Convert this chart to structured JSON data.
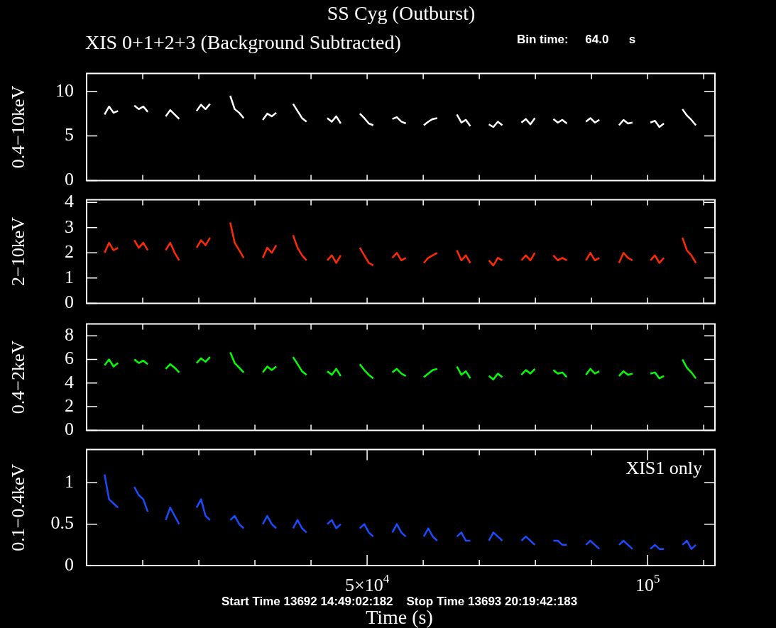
{
  "chart_data": [
    {
      "type": "line",
      "title": "SS Cyg (Outburst)",
      "subtitle": "XIS 0+1+2+3 (Background Subtracted)",
      "ylabel": "0.4−10keV",
      "annotations": [
        "Bin time:     64.0      s"
      ],
      "color": "#ffffff",
      "marker": "none",
      "grid": false,
      "tick_labels": "y",
      "xlim": [
        0,
        112000
      ],
      "ylim": [
        0,
        12
      ],
      "yticks": [
        0,
        5,
        10
      ],
      "xticks": [
        {
          "value": 10000,
          "label": null
        },
        {
          "value": 20000,
          "label": null
        },
        {
          "value": 30000,
          "label": null
        },
        {
          "value": 40000,
          "label": null
        },
        {
          "value": 50000,
          "label": null
        },
        {
          "value": 60000,
          "label": null
        },
        {
          "value": 70000,
          "label": null
        },
        {
          "value": 80000,
          "label": null
        },
        {
          "value": 90000,
          "label": null
        },
        {
          "value": 100000,
          "label": null
        },
        {
          "value": 110000,
          "label": null
        }
      ],
      "x": [
        3200,
        4000,
        4800,
        5600,
        6400,
        8500,
        9300,
        10100,
        10900,
        11700,
        14100,
        14900,
        15700,
        16500,
        17300,
        19600,
        20400,
        21200,
        22000,
        22800,
        25600,
        26400,
        27200,
        28000,
        28800,
        31400,
        32200,
        33000,
        33800,
        34600,
        36800,
        37600,
        38400,
        39200,
        40000,
        42900,
        43700,
        44500,
        45300,
        46100,
        48700,
        49500,
        50300,
        51100,
        51900,
        54500,
        55300,
        56100,
        56900,
        57700,
        60100,
        60900,
        61700,
        62500,
        63300,
        66000,
        66800,
        67600,
        68400,
        69200,
        71700,
        72500,
        73300,
        74100,
        74900,
        77500,
        78300,
        79100,
        79900,
        80700,
        83200,
        84000,
        84800,
        85600,
        86400,
        89000,
        89800,
        90600,
        91400,
        92200,
        94900,
        95700,
        96500,
        97300,
        98100,
        100500,
        101300,
        102100,
        102900,
        103700,
        106200,
        107000,
        107800,
        108600
      ],
      "values": [
        7.4,
        8.3,
        7.6,
        7.8,
        null,
        8.4,
        8.0,
        8.3,
        7.7,
        null,
        7.2,
        7.9,
        7.4,
        6.9,
        null,
        7.8,
        8.5,
        8.0,
        8.6,
        null,
        9.5,
        8.0,
        7.6,
        7.0,
        null,
        6.8,
        7.5,
        7.2,
        7.6,
        null,
        8.6,
        7.8,
        7.0,
        6.6,
        null,
        7.0,
        6.6,
        7.2,
        6.4,
        null,
        7.5,
        7.0,
        6.4,
        6.2,
        null,
        6.9,
        7.1,
        6.6,
        6.4,
        null,
        6.2,
        6.6,
        6.9,
        7.0,
        null,
        7.4,
        6.5,
        6.8,
        6.1,
        null,
        6.3,
        6.0,
        6.6,
        6.2,
        null,
        6.5,
        6.9,
        6.3,
        7.0,
        null,
        6.9,
        6.5,
        6.8,
        6.4,
        null,
        6.6,
        7.0,
        6.5,
        6.8,
        null,
        6.2,
        6.8,
        6.4,
        6.5,
        null,
        6.5,
        6.7,
        6.0,
        6.4,
        null,
        8.0,
        7.3,
        6.8,
        6.2
      ]
    },
    {
      "type": "line",
      "ylabel": "2−10keV",
      "color": "#ff2a00",
      "marker": "none",
      "grid": false,
      "tick_labels": "y",
      "xlim": [
        0,
        112000
      ],
      "ylim": [
        0,
        4.1
      ],
      "yticks": [
        0,
        1,
        2,
        3,
        4
      ],
      "xticks": [
        {
          "value": 10000,
          "label": null
        },
        {
          "value": 20000,
          "label": null
        },
        {
          "value": 30000,
          "label": null
        },
        {
          "value": 40000,
          "label": null
        },
        {
          "value": 50000,
          "label": null
        },
        {
          "value": 60000,
          "label": null
        },
        {
          "value": 70000,
          "label": null
        },
        {
          "value": 80000,
          "label": null
        },
        {
          "value": 90000,
          "label": null
        },
        {
          "value": 100000,
          "label": null
        },
        {
          "value": 110000,
          "label": null
        }
      ],
      "x": [
        3200,
        4000,
        4800,
        5600,
        6400,
        8500,
        9300,
        10100,
        10900,
        11700,
        14100,
        14900,
        15700,
        16500,
        17300,
        19600,
        20400,
        21200,
        22000,
        22800,
        25600,
        26400,
        27200,
        28000,
        28800,
        31400,
        32200,
        33000,
        33800,
        34600,
        36800,
        37600,
        38400,
        39200,
        40000,
        42900,
        43700,
        44500,
        45300,
        46100,
        48700,
        49500,
        50300,
        51100,
        51900,
        54500,
        55300,
        56100,
        56900,
        57700,
        60100,
        60900,
        61700,
        62500,
        63300,
        66000,
        66800,
        67600,
        68400,
        69200,
        71700,
        72500,
        73300,
        74100,
        74900,
        77500,
        78300,
        79100,
        79900,
        80700,
        83200,
        84000,
        84800,
        85600,
        86400,
        89000,
        89800,
        90600,
        91400,
        92200,
        94900,
        95700,
        96500,
        97300,
        98100,
        100500,
        101300,
        102100,
        102900,
        103700,
        106200,
        107000,
        107800,
        108600
      ],
      "values": [
        2.0,
        2.4,
        2.1,
        2.2,
        null,
        2.5,
        2.2,
        2.4,
        2.1,
        null,
        2.1,
        2.4,
        2.0,
        1.7,
        null,
        2.2,
        2.5,
        2.3,
        2.6,
        null,
        3.2,
        2.4,
        2.1,
        1.8,
        null,
        1.8,
        2.2,
        2.0,
        2.3,
        null,
        2.7,
        2.2,
        1.9,
        1.7,
        null,
        1.7,
        1.9,
        1.6,
        1.9,
        null,
        2.2,
        1.9,
        1.6,
        1.5,
        null,
        1.8,
        2.0,
        1.7,
        1.8,
        null,
        1.6,
        1.8,
        1.9,
        2.0,
        null,
        2.1,
        1.7,
        1.9,
        1.6,
        null,
        1.7,
        1.5,
        1.8,
        1.7,
        null,
        1.7,
        1.9,
        1.7,
        2.0,
        null,
        1.9,
        1.7,
        1.8,
        1.7,
        null,
        1.7,
        2.0,
        1.7,
        1.8,
        null,
        1.6,
        2.0,
        1.8,
        1.7,
        null,
        1.7,
        1.9,
        1.6,
        1.8,
        null,
        2.6,
        2.1,
        1.9,
        1.6
      ]
    },
    {
      "type": "line",
      "ylabel": "0.4−2keV",
      "color": "#00ff00",
      "marker": "none",
      "grid": false,
      "tick_labels": "y",
      "xlim": [
        0,
        112000
      ],
      "ylim": [
        0,
        9
      ],
      "yticks": [
        0,
        2,
        4,
        6,
        8
      ],
      "xticks": [
        {
          "value": 10000,
          "label": null
        },
        {
          "value": 20000,
          "label": null
        },
        {
          "value": 30000,
          "label": null
        },
        {
          "value": 40000,
          "label": null
        },
        {
          "value": 50000,
          "label": null
        },
        {
          "value": 60000,
          "label": null
        },
        {
          "value": 70000,
          "label": null
        },
        {
          "value": 80000,
          "label": null
        },
        {
          "value": 90000,
          "label": null
        },
        {
          "value": 100000,
          "label": null
        },
        {
          "value": 110000,
          "label": null
        }
      ],
      "x": [
        3200,
        4000,
        4800,
        5600,
        6400,
        8500,
        9300,
        10100,
        10900,
        11700,
        14100,
        14900,
        15700,
        16500,
        17300,
        19600,
        20400,
        21200,
        22000,
        22800,
        25600,
        26400,
        27200,
        28000,
        28800,
        31400,
        32200,
        33000,
        33800,
        34600,
        36800,
        37600,
        38400,
        39200,
        40000,
        42900,
        43700,
        44500,
        45300,
        46100,
        48700,
        49500,
        50300,
        51100,
        51900,
        54500,
        55300,
        56100,
        56900,
        57700,
        60100,
        60900,
        61700,
        62500,
        63300,
        66000,
        66800,
        67600,
        68400,
        69200,
        71700,
        72500,
        73300,
        74100,
        74900,
        77500,
        78300,
        79100,
        79900,
        80700,
        83200,
        84000,
        84800,
        85600,
        86400,
        89000,
        89800,
        90600,
        91400,
        92200,
        94900,
        95700,
        96500,
        97300,
        98100,
        100500,
        101300,
        102100,
        102900,
        103700,
        106200,
        107000,
        107800,
        108600
      ],
      "values": [
        5.5,
        6.0,
        5.4,
        5.7,
        null,
        6.0,
        5.7,
        5.9,
        5.6,
        null,
        5.2,
        5.6,
        5.3,
        4.9,
        null,
        5.7,
        6.1,
        5.8,
        6.2,
        null,
        6.6,
        5.7,
        5.3,
        4.9,
        null,
        4.9,
        5.4,
        5.1,
        5.4,
        null,
        6.2,
        5.6,
        5.0,
        4.7,
        null,
        5.0,
        4.7,
        5.2,
        4.6,
        null,
        5.6,
        5.1,
        4.7,
        4.4,
        null,
        4.9,
        5.2,
        4.8,
        4.6,
        null,
        4.5,
        4.8,
        5.1,
        5.2,
        null,
        5.4,
        4.7,
        5.0,
        4.4,
        null,
        4.6,
        4.3,
        4.8,
        4.5,
        null,
        4.7,
        5.1,
        4.8,
        5.2,
        null,
        5.1,
        4.8,
        4.9,
        4.5,
        null,
        4.7,
        5.2,
        4.8,
        5.0,
        null,
        4.6,
        5.0,
        4.7,
        4.8,
        null,
        4.8,
        4.9,
        4.4,
        4.6,
        null,
        6.0,
        5.3,
        4.9,
        4.4
      ]
    },
    {
      "type": "line",
      "ylabel": "0.1−0.4keV",
      "xlabel": "Time (s)",
      "annotations": [
        "XIS1 only",
        "Start Time 13692 14:49:02:182    Stop Time 13693 20:19:42:183"
      ],
      "color": "#1a4cff",
      "marker": "none",
      "grid": false,
      "xlim": [
        0,
        112000
      ],
      "ylim": [
        0,
        1.4
      ],
      "yticks": [
        0,
        0.5,
        1
      ],
      "xticks": [
        {
          "value": 10000,
          "label": null
        },
        {
          "value": 20000,
          "label": null
        },
        {
          "value": 30000,
          "label": null
        },
        {
          "value": 40000,
          "label": null
        },
        {
          "value": 50000,
          "label": "5×10$^{4}$"
        },
        {
          "value": 60000,
          "label": null
        },
        {
          "value": 70000,
          "label": null
        },
        {
          "value": 80000,
          "label": null
        },
        {
          "value": 90000,
          "label": null
        },
        {
          "value": 100000,
          "label": "10$^{5}$"
        },
        {
          "value": 110000,
          "label": null
        }
      ],
      "x": [
        3200,
        4000,
        4800,
        5600,
        6400,
        8500,
        9300,
        10100,
        10900,
        11700,
        14100,
        14900,
        15700,
        16500,
        17300,
        19600,
        20400,
        21200,
        22000,
        22800,
        25600,
        26400,
        27200,
        28000,
        28800,
        31400,
        32200,
        33000,
        33800,
        34600,
        36800,
        37600,
        38400,
        39200,
        40000,
        42900,
        43700,
        44500,
        45300,
        46100,
        48700,
        49500,
        50300,
        51100,
        51900,
        54500,
        55300,
        56100,
        56900,
        57700,
        60100,
        60900,
        61700,
        62500,
        63300,
        66000,
        66800,
        67600,
        68400,
        69200,
        71700,
        72500,
        73300,
        74100,
        74900,
        77500,
        78300,
        79100,
        79900,
        80700,
        83200,
        84000,
        84800,
        85600,
        86400,
        89000,
        89800,
        90600,
        91400,
        92200,
        94900,
        95700,
        96500,
        97300,
        98100,
        100500,
        101300,
        102100,
        102900,
        103700,
        106200,
        107000,
        107800,
        108600
      ],
      "values": [
        1.1,
        0.8,
        0.75,
        0.7,
        null,
        0.95,
        0.85,
        0.8,
        0.65,
        null,
        0.55,
        0.7,
        0.6,
        0.5,
        null,
        0.7,
        0.8,
        0.6,
        0.55,
        null,
        0.55,
        0.6,
        0.5,
        0.45,
        null,
        0.5,
        0.6,
        0.5,
        0.45,
        null,
        0.45,
        0.55,
        0.45,
        0.4,
        null,
        0.5,
        0.55,
        0.45,
        0.5,
        null,
        0.45,
        0.5,
        0.4,
        0.35,
        null,
        0.4,
        0.5,
        0.4,
        0.35,
        null,
        0.35,
        0.45,
        0.35,
        0.3,
        null,
        0.35,
        0.4,
        0.3,
        0.3,
        null,
        0.3,
        0.4,
        0.35,
        0.3,
        null,
        0.3,
        0.35,
        0.3,
        0.25,
        null,
        0.3,
        0.3,
        0.25,
        0.25,
        null,
        0.25,
        0.3,
        0.25,
        0.2,
        null,
        0.25,
        0.3,
        0.25,
        0.2,
        null,
        0.2,
        0.25,
        0.2,
        0.2,
        null,
        0.25,
        0.3,
        0.2,
        0.25
      ]
    }
  ]
}
